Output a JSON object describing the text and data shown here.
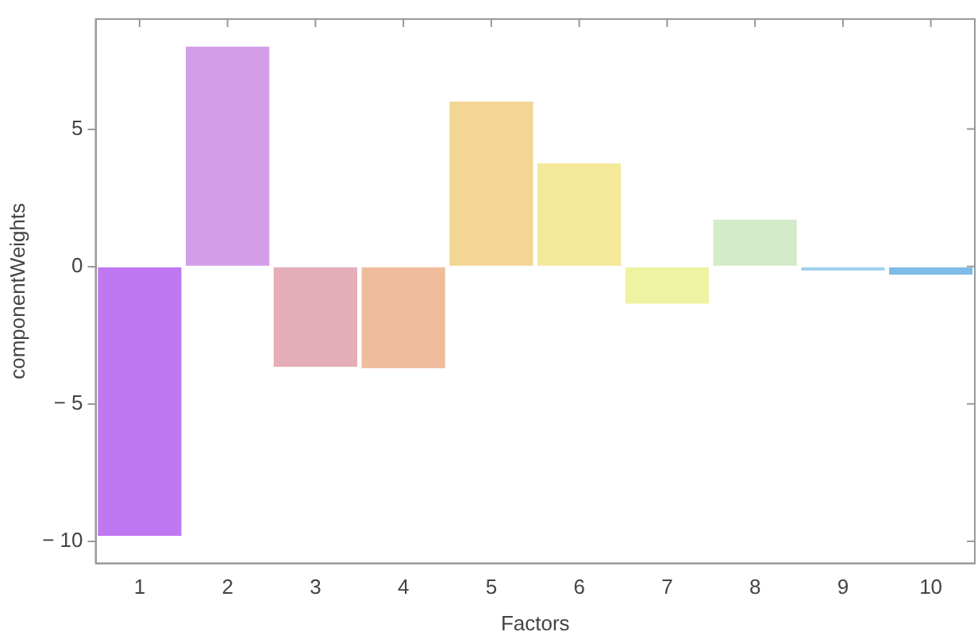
{
  "chart_data": {
    "type": "bar",
    "xlabel": "Factors",
    "ylabel": "componentWeights",
    "categories": [
      "1",
      "2",
      "3",
      "4",
      "5",
      "6",
      "7",
      "8",
      "9",
      "10"
    ],
    "values": [
      -9.8,
      8.0,
      -3.65,
      -3.7,
      6.0,
      3.75,
      -1.35,
      1.7,
      -0.15,
      -0.3
    ],
    "colors": [
      "#c077f2",
      "#d39de8",
      "#e4adb7",
      "#efbd9c",
      "#f3d594",
      "#f4e899",
      "#eef3a2",
      "#d3ebc8",
      "#9dd1ee",
      "#7fbbe8"
    ],
    "ylim": [
      -10.8,
      9
    ],
    "yticks": [
      {
        "value": -10,
        "label": "− 10"
      },
      {
        "value": -5,
        "label": "− 5"
      },
      0,
      5
    ],
    "grid": false,
    "legend": false
  }
}
